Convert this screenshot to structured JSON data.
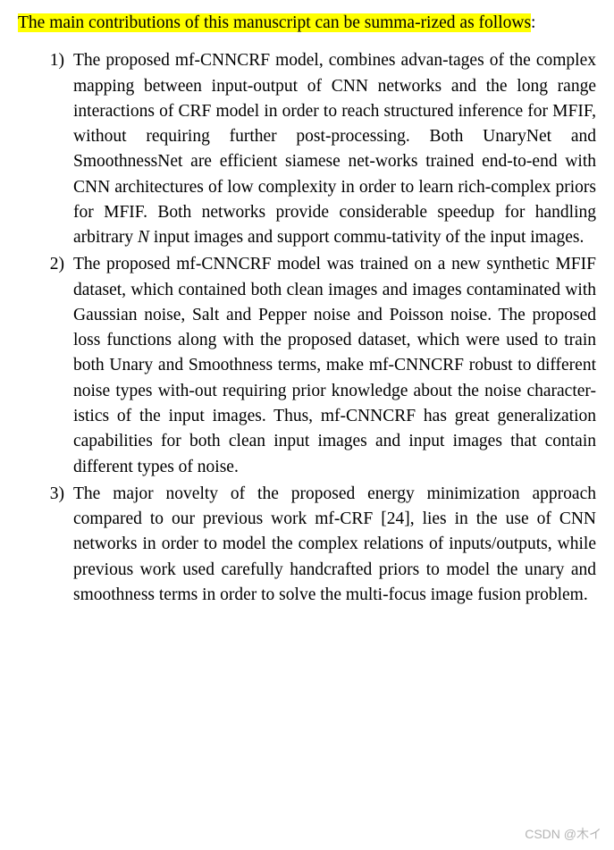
{
  "intro": {
    "highlighted": "The main contributions of this manuscript can be summa-rized as follows",
    "suffix": ":"
  },
  "items": [
    {
      "marker": "1)",
      "text_pre": "The proposed mf-CNNCRF model, combines advan-tages of the complex mapping between input-output of CNN networks and the long range interactions of CRF model in order to reach structured inference for MFIF, without requiring further post-processing.  Both UnaryNet and SmoothnessNet are efficient siamese net-works trained end-to-end with CNN architectures of low complexity in order to learn rich-complex priors for MFIF. Both networks provide considerable speedup for handling arbitrary ",
      "italic": "N",
      "text_post": " input images and support commu-tativity of the input images."
    },
    {
      "marker": "2)",
      "text_pre": "The proposed mf-CNNCRF model was trained on a new synthetic MFIF dataset, which contained both clean images and images contaminated with Gaussian noise, Salt and Pepper noise and Poisson noise. The proposed loss functions along with the proposed dataset, which were used to train both Unary and Smoothness terms, make mf-CNNCRF robust to different noise types with-out requiring prior knowledge about the noise character-istics of the input images. Thus, mf-CNNCRF has great generalization capabilities for both clean input images and input images that contain different types of noise.",
      "italic": "",
      "text_post": ""
    },
    {
      "marker": "3)",
      "text_pre": "The major novelty of the proposed energy minimization approach compared to our previous work mf-CRF [24], lies in the use of CNN networks in order to model the complex relations of inputs/outputs, while previous work used carefully handcrafted priors to model the unary and smoothness terms in order to solve the multi-focus image fusion problem.",
      "italic": "",
      "text_post": ""
    }
  ],
  "watermark": "CSDN @木イ"
}
